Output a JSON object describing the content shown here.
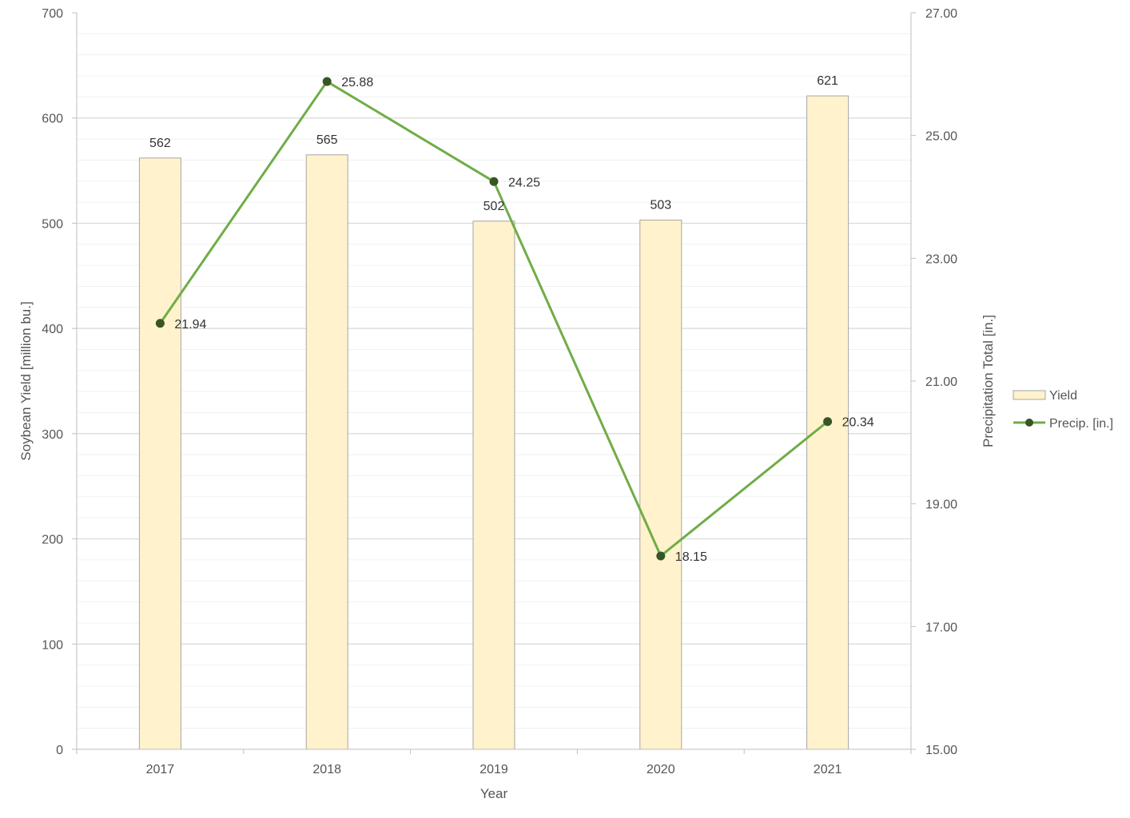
{
  "chart_data": {
    "type": "bar",
    "combo": "bar+line (dual y-axis)",
    "title": "",
    "xlabel": "Year",
    "ylabel": "Soybean Yield [million bu.]",
    "y2label": "Precipitation Total [in.]",
    "categories": [
      "2017",
      "2018",
      "2019",
      "2020",
      "2021"
    ],
    "ylim": [
      0,
      700
    ],
    "yticks": [
      "0",
      "100",
      "200",
      "300",
      "400",
      "500",
      "600",
      "700"
    ],
    "y2lim": [
      15,
      27
    ],
    "y2ticks": [
      "15.00",
      "17.00",
      "19.00",
      "21.00",
      "23.00",
      "25.00",
      "27.00"
    ],
    "grid": true,
    "legend_position": "right",
    "series": [
      {
        "name": "Yield",
        "type": "bar",
        "axis": "left",
        "values": [
          562,
          565,
          502,
          503,
          621
        ],
        "labels": [
          "562",
          "565",
          "502",
          "503",
          "621"
        ],
        "color": "#FFF2CC",
        "stroke": "#A6A6A6"
      },
      {
        "name": "Precip. [in.]",
        "type": "line",
        "axis": "right",
        "values": [
          21.94,
          25.88,
          24.25,
          18.15,
          20.34
        ],
        "labels": [
          "21.94",
          "25.88",
          "24.25",
          "18.15",
          "20.34"
        ],
        "color": "#70AD47",
        "marker_color": "#375623"
      }
    ]
  }
}
